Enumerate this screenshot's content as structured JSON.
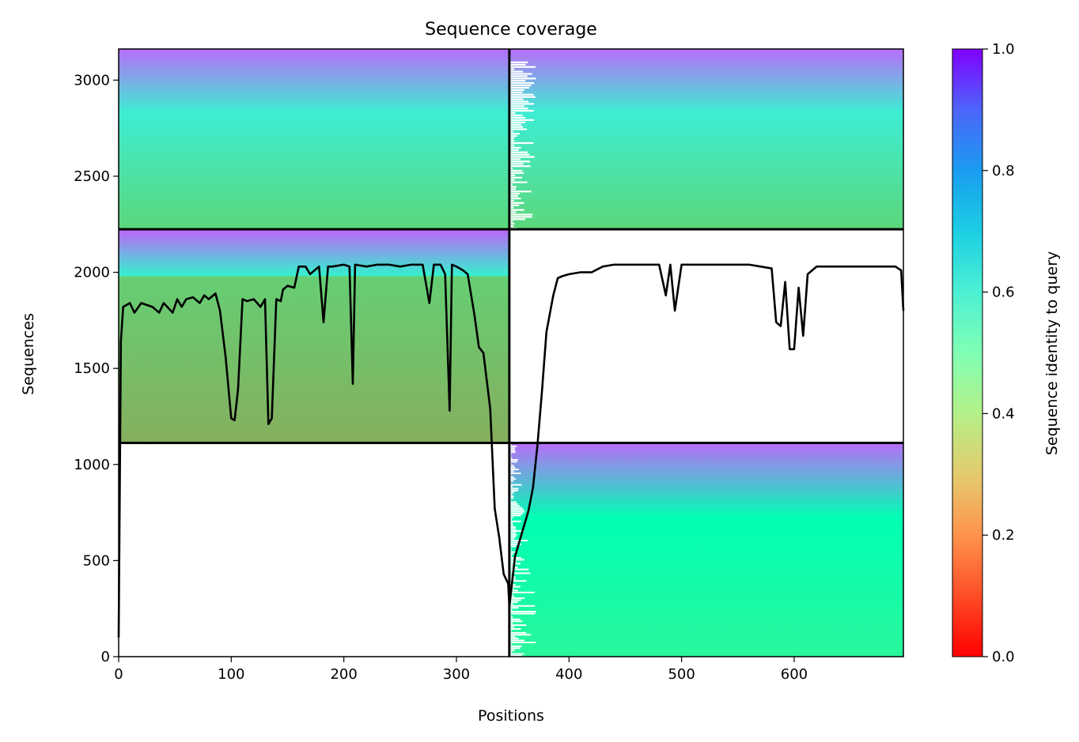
{
  "chart_data": {
    "type": "heatmap",
    "title": "Sequence coverage",
    "xlabel": "Positions",
    "ylabel": "Sequences",
    "xlim": [
      0,
      697
    ],
    "ylim": [
      0,
      3162
    ],
    "x_ticks": [
      0,
      100,
      200,
      300,
      400,
      500,
      600
    ],
    "y_ticks": [
      0,
      500,
      1000,
      1500,
      2000,
      2500,
      3000
    ],
    "grid": false,
    "domain_boundary_x": 347,
    "block_boundaries_y": [
      1112,
      2224
    ],
    "blocks": [
      {
        "x_range": [
          0,
          347
        ],
        "y_range": [
          2224,
          3162
        ],
        "identity_top": 0.86,
        "identity_mid": 0.62,
        "identity_bottom": 0.32
      },
      {
        "x_range": [
          0,
          347
        ],
        "y_range": [
          1980,
          2224
        ],
        "identity_top": 0.87,
        "identity_bottom": 0.6
      },
      {
        "x_range": [
          0,
          347
        ],
        "y_range": [
          1112,
          1980
        ],
        "identity_top": 0.3,
        "identity_bottom": 0.24
      },
      {
        "x_range": [
          347,
          697
        ],
        "y_range": [
          2224,
          3162
        ],
        "identity_top": 0.86,
        "identity_mid": 0.62,
        "identity_bottom": 0.32
      },
      {
        "x_range": [
          347,
          697
        ],
        "y_range": [
          0,
          1112
        ],
        "identity_top": 0.86,
        "identity_mid": 0.5,
        "identity_bottom": 0.42
      }
    ],
    "coverage_line": {
      "x": [
        0,
        2,
        4,
        10,
        14,
        20,
        30,
        36,
        40,
        48,
        52,
        56,
        60,
        66,
        72,
        76,
        80,
        86,
        90,
        95,
        100,
        103,
        106,
        110,
        114,
        120,
        126,
        130,
        133,
        136,
        140,
        144,
        146,
        150,
        156,
        160,
        166,
        170,
        178,
        182,
        186,
        190,
        200,
        205,
        208,
        210,
        220,
        230,
        240,
        250,
        260,
        270,
        276,
        280,
        286,
        290,
        294,
        296,
        300,
        306,
        310,
        316,
        320,
        324,
        330,
        334,
        338,
        342,
        346,
        347,
        352,
        358,
        364,
        368,
        372,
        376,
        380,
        386,
        390,
        394,
        400,
        410,
        420,
        430,
        440,
        450,
        460,
        470,
        480,
        486,
        490,
        494,
        500,
        520,
        540,
        560,
        580,
        584,
        588,
        592,
        596,
        600,
        604,
        608,
        612,
        620,
        630,
        640,
        660,
        680,
        690,
        695,
        697
      ],
      "y": [
        100,
        1640,
        1820,
        1840,
        1790,
        1840,
        1820,
        1790,
        1840,
        1790,
        1860,
        1820,
        1860,
        1870,
        1840,
        1880,
        1860,
        1890,
        1800,
        1560,
        1240,
        1230,
        1390,
        1860,
        1850,
        1860,
        1820,
        1860,
        1210,
        1240,
        1860,
        1850,
        1910,
        1930,
        1920,
        2030,
        2030,
        1990,
        2030,
        1740,
        2030,
        2030,
        2040,
        2030,
        1420,
        2040,
        2030,
        2040,
        2040,
        2030,
        2040,
        2040,
        1840,
        2040,
        2040,
        1990,
        1280,
        2040,
        2030,
        2010,
        1990,
        1780,
        1610,
        1580,
        1290,
        770,
        620,
        430,
        380,
        260,
        520,
        640,
        760,
        880,
        1100,
        1380,
        1690,
        1880,
        1970,
        1980,
        1990,
        2000,
        2000,
        2030,
        2040,
        2040,
        2040,
        2040,
        2040,
        1880,
        2040,
        1800,
        2040,
        2040,
        2040,
        2040,
        2020,
        1740,
        1720,
        1950,
        1600,
        1600,
        1920,
        1670,
        1990,
        2030,
        2030,
        2030,
        2030,
        2030,
        2030,
        2010,
        1800
      ]
    },
    "colorbar": {
      "label": "Sequence identity to query",
      "range": [
        0,
        1
      ],
      "ticks": [
        "0.0",
        "0.2",
        "0.4",
        "0.6",
        "0.8",
        "1.0"
      ],
      "colormap": "rainbow_r"
    }
  },
  "colors": {
    "low_identity": "#ff0000",
    "high_identity": "#8000ff",
    "line": "#000000"
  }
}
